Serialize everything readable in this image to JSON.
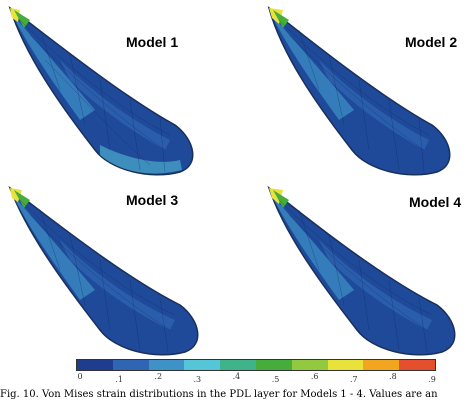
{
  "figure": {
    "panels": [
      {
        "label": "Model 1"
      },
      {
        "label": "Model 2"
      },
      {
        "label": "Model 3"
      },
      {
        "label": "Model 4"
      }
    ],
    "colorbar": {
      "colors": [
        "#1f3c8f",
        "#2f66b4",
        "#3f92c8",
        "#55c6d8",
        "#3fb38a",
        "#46ad3c",
        "#93c93e",
        "#e8e23a",
        "#f2a51e",
        "#e4502d"
      ],
      "ticks": [
        "0",
        ".1",
        ".2",
        ".3",
        ".4",
        ".5",
        ".6",
        ".7",
        ".8",
        ".9"
      ]
    },
    "caption": "Fig. 10. Von Mises strain distributions in the PDL layer for Models 1 - 4. Values are an"
  }
}
